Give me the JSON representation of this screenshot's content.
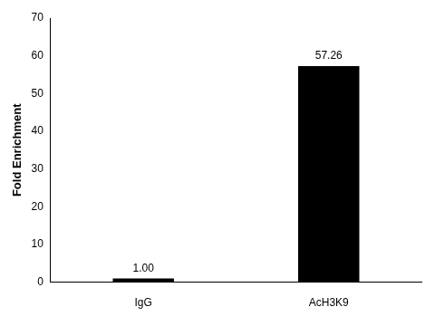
{
  "chart_data": {
    "type": "bar",
    "y_label": "Fold Enrichment",
    "categories": [
      "IgG",
      "AcH3K9"
    ],
    "values": [
      1.0,
      57.26
    ],
    "value_labels": [
      "1.00",
      "57.26"
    ],
    "color": "#000000",
    "ylim": [
      0,
      70
    ],
    "yticks": [
      0,
      10,
      20,
      30,
      40,
      50,
      60,
      70
    ],
    "grid": false,
    "data_labels": true
  }
}
